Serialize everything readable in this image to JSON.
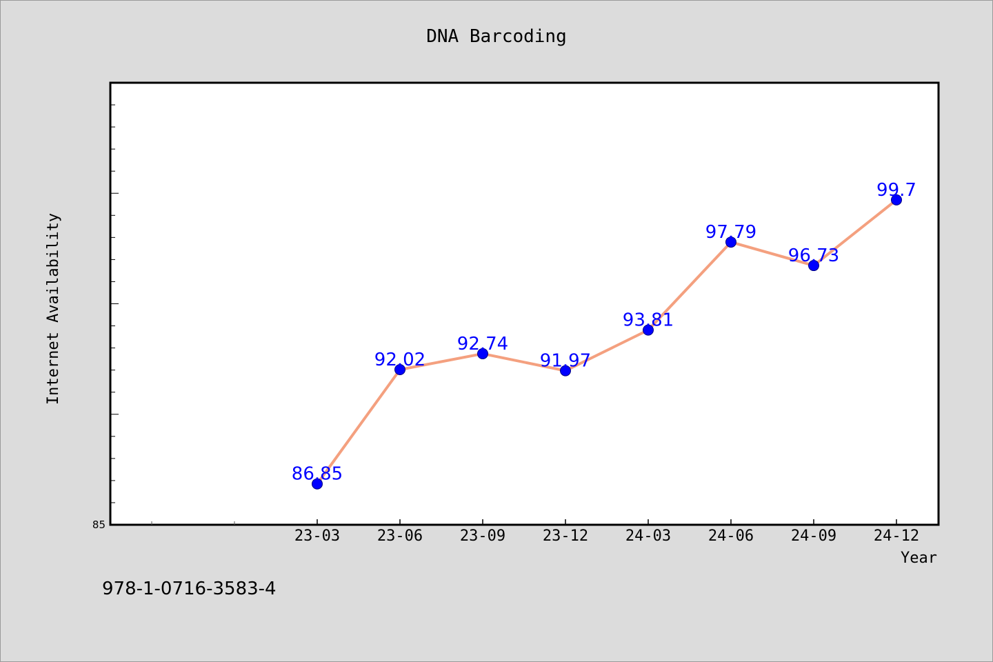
{
  "chart_data": {
    "type": "line",
    "title": "DNA Barcoding",
    "xlabel": "Year",
    "ylabel": "Internet Availability",
    "categories": [
      "23-03",
      "23-06",
      "23-09",
      "23-12",
      "24-03",
      "24-06",
      "24-09",
      "24-12"
    ],
    "series": [
      {
        "values": [
          86.85,
          92.02,
          92.74,
          91.97,
          93.81,
          97.79,
          96.73,
          99.7
        ],
        "labels": [
          "86.85",
          "92.02",
          "92.74",
          "91.97",
          "93.81",
          "97.79",
          "96.73",
          "99.7"
        ]
      }
    ],
    "ylim": [
      85,
      105
    ],
    "ytick_labels": [
      "85"
    ],
    "grid": false,
    "line_color": "#f4a07f",
    "marker_color": "#0000ff",
    "label_color": "#0000ff"
  },
  "footer_text": "978-1-0716-3583-4"
}
